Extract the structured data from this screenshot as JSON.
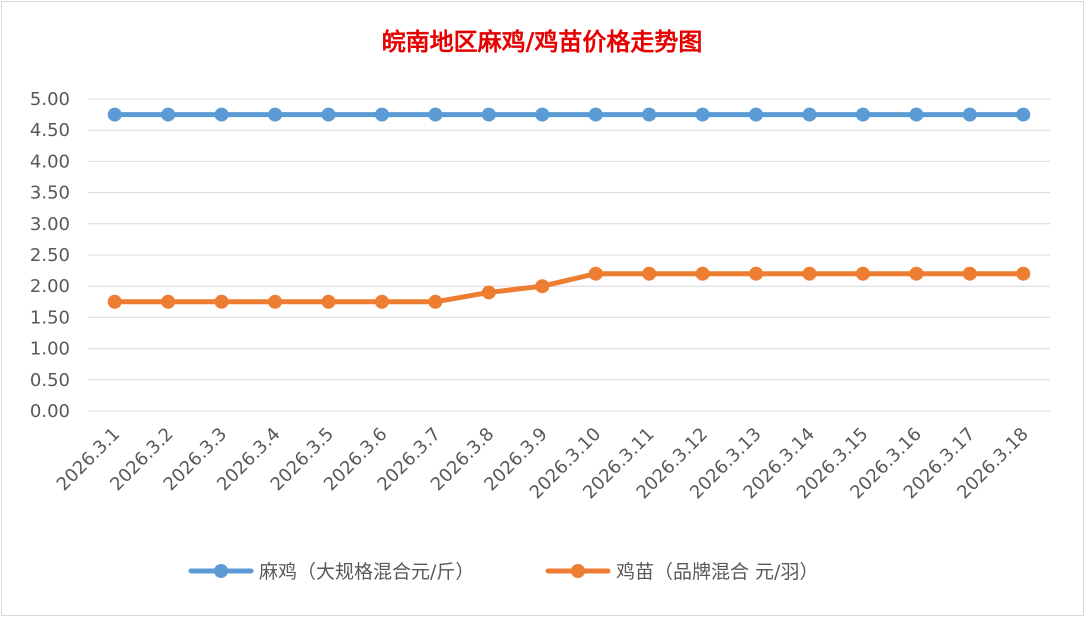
{
  "chart_data": {
    "type": "line",
    "title": "皖南地区麻鸡/鸡苗价格走势图",
    "categories": [
      "2026.3.1",
      "2026.3.2",
      "2026.3.3",
      "2026.3.4",
      "2026.3.5",
      "2026.3.6",
      "2026.3.7",
      "2026.3.8",
      "2026.3.9",
      "2026.3.10",
      "2026.3.11",
      "2026.3.12",
      "2026.3.13",
      "2026.3.14",
      "2026.3.15",
      "2026.3.16",
      "2026.3.17",
      "2026.3.18"
    ],
    "ylim": [
      0,
      5
    ],
    "yticks": [
      "0.00",
      "0.50",
      "1.00",
      "1.50",
      "2.00",
      "2.50",
      "3.00",
      "3.50",
      "4.00",
      "4.50",
      "5.00"
    ],
    "grid": true,
    "legend_position": "bottom",
    "series": [
      {
        "name": "麻鸡（大规格混合元/斤）",
        "color": "#5b9bd5",
        "values": [
          4.75,
          4.75,
          4.75,
          4.75,
          4.75,
          4.75,
          4.75,
          4.75,
          4.75,
          4.75,
          4.75,
          4.75,
          4.75,
          4.75,
          4.75,
          4.75,
          4.75,
          4.75
        ]
      },
      {
        "name": "鸡苗（品牌混合 元/羽）",
        "color": "#ed7d31",
        "values": [
          1.75,
          1.75,
          1.75,
          1.75,
          1.75,
          1.75,
          1.75,
          1.9,
          2.0,
          2.2,
          2.2,
          2.2,
          2.2,
          2.2,
          2.2,
          2.2,
          2.2,
          2.2
        ]
      }
    ]
  }
}
